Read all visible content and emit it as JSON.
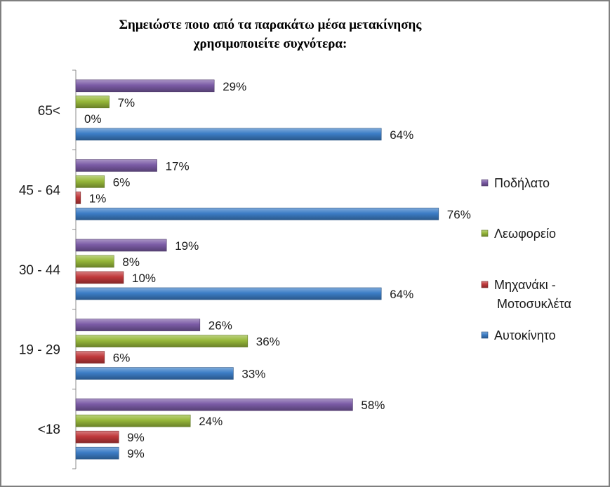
{
  "chart_data": {
    "type": "bar",
    "orientation": "horizontal",
    "title_lines": [
      "Σημειώστε ποιο από τα παρακάτω μέσα μετακίνησης",
      "χρησιμοποιείτε συχνότερα:"
    ],
    "categories": [
      "65<",
      "45 - 64",
      "30 - 44",
      "19 - 29",
      "<18"
    ],
    "series": [
      {
        "name": "Ποδήλατο",
        "color": "#7b5ba6",
        "values": [
          29,
          17,
          19,
          26,
          58
        ]
      },
      {
        "name": "Λεωφορείο",
        "color": "#97b83a",
        "values": [
          7,
          6,
          8,
          36,
          24
        ]
      },
      {
        "name": "Μηχανάκι - Μοτοσυκλέτα",
        "color": "#c0393b",
        "values": [
          0,
          1,
          10,
          6,
          9
        ]
      },
      {
        "name": "Αυτοκίνητο",
        "color": "#3c7dc6",
        "values": [
          64,
          76,
          64,
          33,
          9
        ]
      }
    ],
    "value_suffix": "%",
    "xlim": [
      0,
      100
    ],
    "grid": false,
    "legend_position": "right",
    "legend_lines": [
      [
        "Ποδήλατο"
      ],
      [
        "Λεωφορείο"
      ],
      [
        "Μηχανάκι -",
        "Μοτοσυκλέτα"
      ],
      [
        "Αυτοκίνητο"
      ]
    ]
  }
}
